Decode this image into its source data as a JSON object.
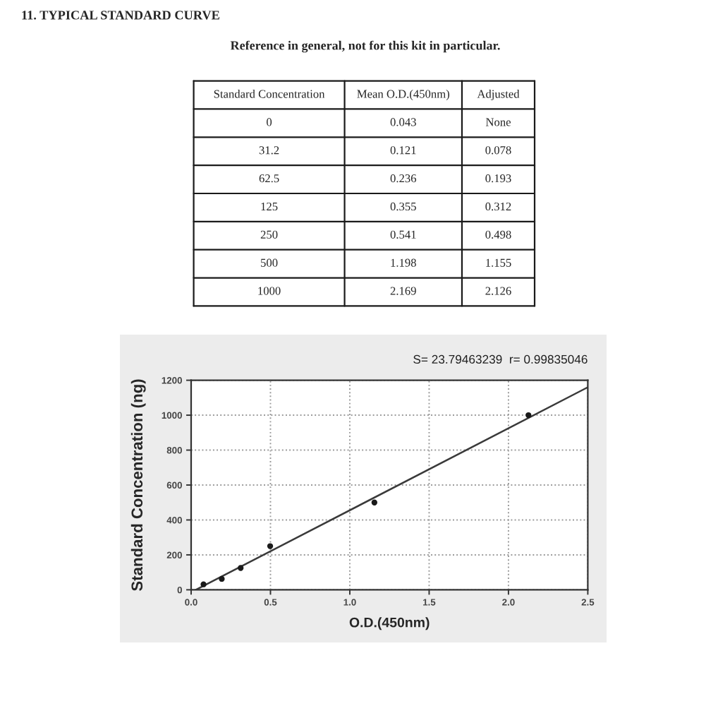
{
  "chart_data": [
    {
      "type": "other",
      "title": "11. TYPICAL STANDARD CURVE",
      "subtitle": "Reference in general, not for this kit in particular.",
      "categories": [
        "Standard Concentration",
        "Mean O.D.(450nm)",
        "Adjusted"
      ],
      "annotations": [
        "0",
        "0.043",
        "None",
        "31.2",
        "0.121",
        "0.078",
        "62.5",
        "0.236",
        "0.193",
        "125",
        "0.355",
        "0.312",
        "250",
        "0.541",
        "0.498",
        "500",
        "1.198",
        "1.155",
        "1000",
        "2.169",
        "2.126"
      ]
    },
    {
      "type": "scatter",
      "xlabel": "O.D.(450nm)",
      "ylabel": "Standard Concentration (ng)",
      "annotations": [
        "S= 23.79463239  r= 0.99835046"
      ],
      "grid": true,
      "series": [
        {
          "type": "scatter",
          "color": "#1a1a1a",
          "marker": "circle",
          "x": [
            0.078,
            0.193,
            0.312,
            0.498,
            1.155,
            2.126
          ],
          "values": [
            31.2,
            62.5,
            125,
            250,
            500,
            1000
          ]
        },
        {
          "type": "line",
          "color": "#3a3a3a",
          "x": [
            0.03,
            2.5
          ],
          "values": [
            0,
            1160
          ]
        }
      ],
      "xlim": [
        0,
        2.5
      ],
      "xticks": [
        {
          "value": 0,
          "label": "0.0"
        },
        {
          "value": 0.5,
          "label": "0.5"
        },
        {
          "value": 1,
          "label": "1.0"
        },
        {
          "value": 1.5,
          "label": "1.5"
        },
        {
          "value": 2,
          "label": "2.0"
        },
        {
          "value": 2.5,
          "label": "2.5"
        }
      ],
      "ylim": [
        0,
        1200
      ],
      "yticks": [
        0,
        200,
        400,
        600,
        800,
        1000,
        1200
      ]
    }
  ]
}
